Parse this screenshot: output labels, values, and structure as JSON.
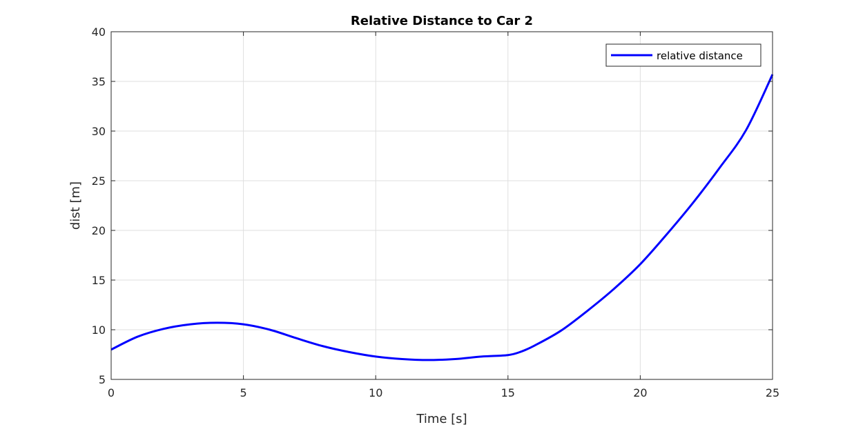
{
  "chart_data": {
    "type": "line",
    "title": "Relative Distance to Car 2",
    "xlabel": "Time [s]",
    "ylabel": "dist [m]",
    "xlim": [
      0,
      25
    ],
    "ylim": [
      5,
      40
    ],
    "xticks": [
      0,
      5,
      10,
      15,
      20,
      25
    ],
    "yticks": [
      5,
      10,
      15,
      20,
      25,
      30,
      35,
      40
    ],
    "grid": true,
    "legend_position": "top-right",
    "series": [
      {
        "name": "relative distance",
        "color": "#0000ff",
        "x": [
          0,
          1,
          2,
          3,
          4,
          5,
          6,
          7,
          8,
          9,
          10,
          11,
          12,
          13,
          14,
          15,
          15.5,
          16,
          17,
          18,
          19,
          20,
          21,
          22,
          23,
          24,
          25
        ],
        "y": [
          8.0,
          9.3,
          10.1,
          10.55,
          10.7,
          10.55,
          10.0,
          9.15,
          8.35,
          7.75,
          7.3,
          7.05,
          6.95,
          7.05,
          7.3,
          7.45,
          7.8,
          8.4,
          9.9,
          11.9,
          14.1,
          16.6,
          19.6,
          22.8,
          26.3,
          30.1,
          35.7
        ]
      }
    ]
  }
}
